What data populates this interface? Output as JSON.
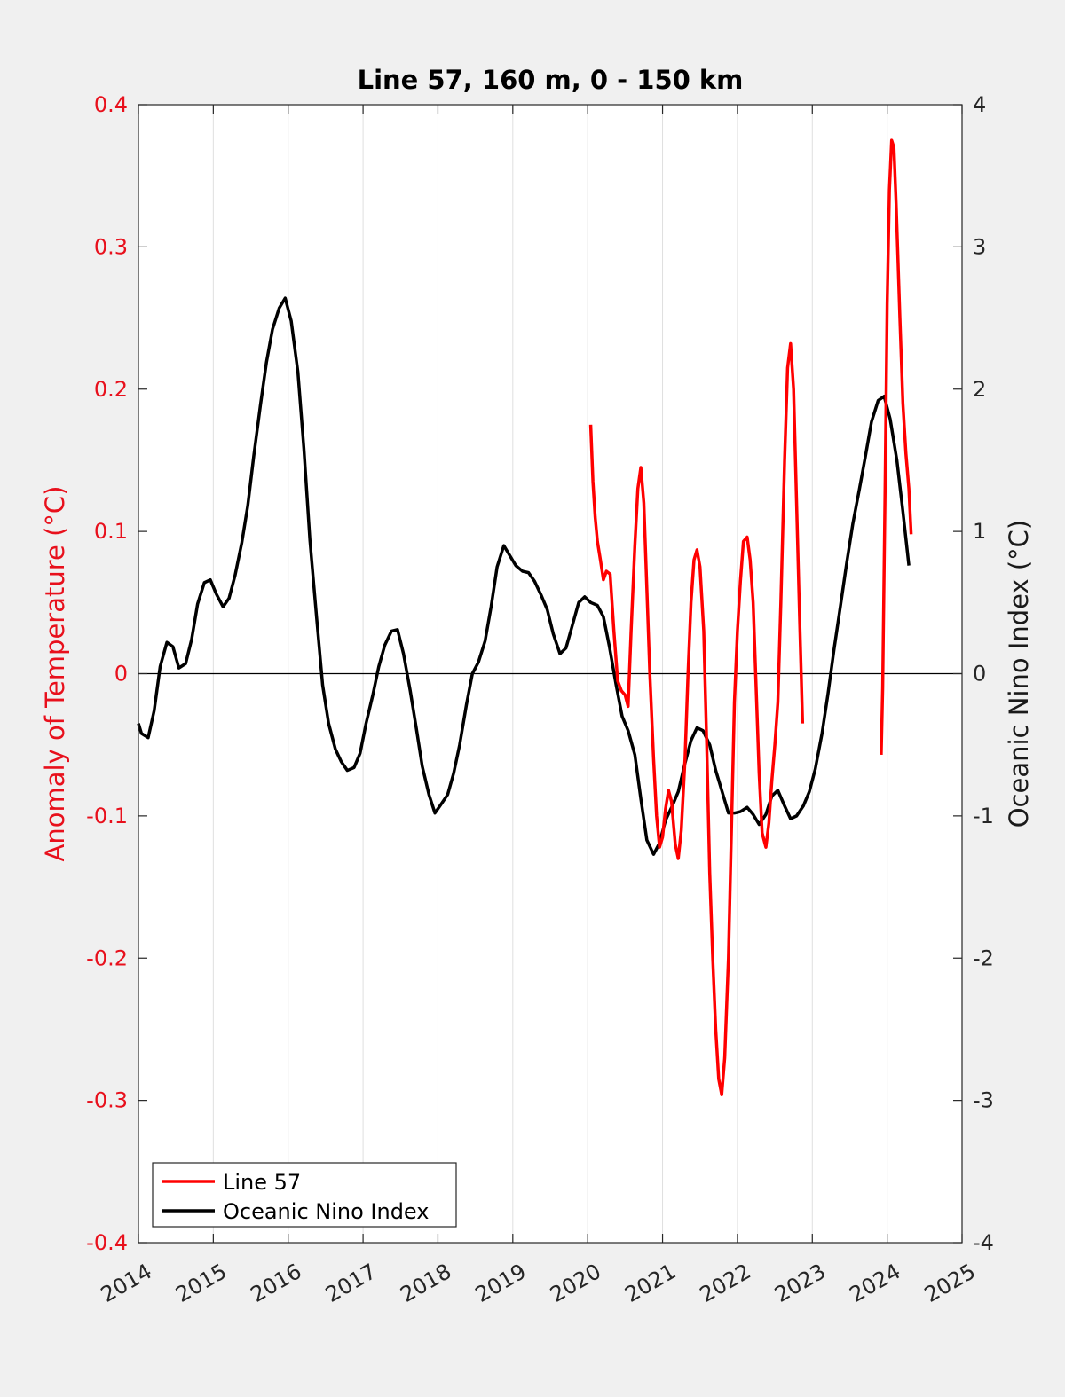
{
  "chart_data": {
    "type": "line",
    "title": "Line 57, 160 m, 0 - 150 km",
    "xlabel": "",
    "ylabel_left": "Anomaly of Temperature (°C)",
    "ylabel_right": "Oceanic Nino Index (°C)",
    "xlim": [
      2014,
      2025
    ],
    "ylim_left": [
      -0.4,
      0.4
    ],
    "ylim_right": [
      -4,
      4
    ],
    "x_ticks": [
      2014,
      2015,
      2016,
      2017,
      2018,
      2019,
      2020,
      2021,
      2022,
      2023,
      2024,
      2025
    ],
    "x_tick_labels": [
      "2014",
      "2015",
      "2016",
      "2017",
      "2018",
      "2019",
      "2020",
      "2021",
      "2022",
      "2023",
      "2024",
      "2025"
    ],
    "y_left_ticks": [
      0.4,
      0.3,
      0.2,
      0.1,
      0,
      -0.1,
      -0.2,
      -0.3,
      -0.4
    ],
    "y_left_tick_labels": [
      "0.4",
      "0.3",
      "0.2",
      "0.1",
      "0",
      "-0.1",
      "-0.2",
      "-0.3",
      "-0.4"
    ],
    "y_right_ticks": [
      4,
      3,
      2,
      1,
      0,
      -1,
      -2,
      -3,
      -4
    ],
    "y_right_tick_labels": [
      "4",
      "3",
      "2",
      "1",
      "0",
      "-1",
      "-2",
      "-3",
      "-4"
    ],
    "grid": "vertical",
    "zero_line": true,
    "legend_position": "bottom-left",
    "colors": {
      "left_axis": "#e8101c",
      "line57": "#ff0000",
      "oni": "#000000",
      "plot_bg": "#ffffff",
      "figure_bg": "#f0f0f0"
    },
    "series": [
      {
        "name": "Line 57",
        "axis": "left",
        "segments": [
          [
            [
              2020.04,
              0.175
            ],
            [
              2020.07,
              0.135
            ],
            [
              2020.1,
              0.11
            ],
            [
              2020.13,
              0.093
            ],
            [
              2020.17,
              0.08
            ],
            [
              2020.21,
              0.066
            ],
            [
              2020.25,
              0.072
            ],
            [
              2020.3,
              0.07
            ],
            [
              2020.35,
              0.03
            ],
            [
              2020.4,
              -0.005
            ],
            [
              2020.45,
              -0.012
            ],
            [
              2020.5,
              -0.015
            ],
            [
              2020.54,
              -0.023
            ],
            [
              2020.58,
              0.03
            ],
            [
              2020.63,
              0.09
            ],
            [
              2020.67,
              0.13
            ],
            [
              2020.71,
              0.145
            ],
            [
              2020.75,
              0.12
            ],
            [
              2020.79,
              0.06
            ],
            [
              2020.83,
              0.0
            ],
            [
              2020.88,
              -0.06
            ],
            [
              2020.92,
              -0.1
            ],
            [
              2020.96,
              -0.122
            ],
            [
              2021.0,
              -0.115
            ],
            [
              2021.04,
              -0.095
            ],
            [
              2021.08,
              -0.082
            ],
            [
              2021.12,
              -0.09
            ],
            [
              2021.17,
              -0.12
            ],
            [
              2021.21,
              -0.13
            ],
            [
              2021.25,
              -0.11
            ],
            [
              2021.3,
              -0.06
            ],
            [
              2021.34,
              0.0
            ],
            [
              2021.38,
              0.05
            ],
            [
              2021.42,
              0.08
            ],
            [
              2021.46,
              0.087
            ],
            [
              2021.5,
              0.075
            ],
            [
              2021.55,
              0.03
            ],
            [
              2021.59,
              -0.05
            ],
            [
              2021.63,
              -0.14
            ],
            [
              2021.67,
              -0.2
            ],
            [
              2021.71,
              -0.25
            ],
            [
              2021.75,
              -0.285
            ],
            [
              2021.79,
              -0.296
            ],
            [
              2021.83,
              -0.27
            ],
            [
              2021.88,
              -0.2
            ],
            [
              2021.92,
              -0.11
            ],
            [
              2021.96,
              -0.02
            ],
            [
              2022.0,
              0.03
            ],
            [
              2022.04,
              0.065
            ],
            [
              2022.08,
              0.093
            ],
            [
              2022.13,
              0.096
            ],
            [
              2022.17,
              0.08
            ],
            [
              2022.21,
              0.05
            ],
            [
              2022.25,
              -0.01
            ],
            [
              2022.29,
              -0.07
            ],
            [
              2022.33,
              -0.112
            ],
            [
              2022.38,
              -0.122
            ],
            [
              2022.42,
              -0.105
            ],
            [
              2022.46,
              -0.075
            ],
            [
              2022.5,
              -0.05
            ],
            [
              2022.54,
              -0.02
            ],
            [
              2022.58,
              0.05
            ],
            [
              2022.63,
              0.15
            ],
            [
              2022.67,
              0.215
            ],
            [
              2022.71,
              0.232
            ],
            [
              2022.75,
              0.2
            ],
            [
              2022.79,
              0.12
            ],
            [
              2022.83,
              0.04
            ],
            [
              2022.87,
              -0.035
            ]
          ],
          [
            [
              2023.92,
              -0.057
            ],
            [
              2023.94,
              -0.01
            ],
            [
              2023.97,
              0.12
            ],
            [
              2024.0,
              0.26
            ],
            [
              2024.03,
              0.34
            ],
            [
              2024.06,
              0.375
            ],
            [
              2024.09,
              0.37
            ],
            [
              2024.12,
              0.33
            ],
            [
              2024.17,
              0.25
            ],
            [
              2024.21,
              0.19
            ],
            [
              2024.25,
              0.155
            ],
            [
              2024.29,
              0.13
            ],
            [
              2024.32,
              0.098
            ]
          ]
        ]
      },
      {
        "name": "Oceanic Nino Index",
        "axis": "right",
        "segments": [
          [
            [
              2014.0,
              -0.35
            ],
            [
              2014.04,
              -0.42
            ],
            [
              2014.13,
              -0.45
            ],
            [
              2014.21,
              -0.26
            ],
            [
              2014.29,
              0.05
            ],
            [
              2014.38,
              0.22
            ],
            [
              2014.46,
              0.19
            ],
            [
              2014.54,
              0.04
            ],
            [
              2014.63,
              0.07
            ],
            [
              2014.71,
              0.24
            ],
            [
              2014.79,
              0.49
            ],
            [
              2014.88,
              0.64
            ],
            [
              2014.96,
              0.66
            ],
            [
              2015.04,
              0.56
            ],
            [
              2015.13,
              0.47
            ],
            [
              2015.21,
              0.53
            ],
            [
              2015.29,
              0.69
            ],
            [
              2015.38,
              0.92
            ],
            [
              2015.46,
              1.18
            ],
            [
              2015.54,
              1.53
            ],
            [
              2015.63,
              1.89
            ],
            [
              2015.71,
              2.19
            ],
            [
              2015.79,
              2.42
            ],
            [
              2015.88,
              2.57
            ],
            [
              2015.96,
              2.64
            ],
            [
              2016.04,
              2.48
            ],
            [
              2016.13,
              2.12
            ],
            [
              2016.21,
              1.58
            ],
            [
              2016.29,
              0.94
            ],
            [
              2016.38,
              0.39
            ],
            [
              2016.46,
              -0.08
            ],
            [
              2016.54,
              -0.35
            ],
            [
              2016.63,
              -0.53
            ],
            [
              2016.71,
              -0.62
            ],
            [
              2016.79,
              -0.68
            ],
            [
              2016.88,
              -0.66
            ],
            [
              2016.96,
              -0.56
            ],
            [
              2017.04,
              -0.35
            ],
            [
              2017.13,
              -0.15
            ],
            [
              2017.21,
              0.05
            ],
            [
              2017.29,
              0.2
            ],
            [
              2017.38,
              0.3
            ],
            [
              2017.46,
              0.31
            ],
            [
              2017.54,
              0.14
            ],
            [
              2017.63,
              -0.12
            ],
            [
              2017.71,
              -0.38
            ],
            [
              2017.79,
              -0.65
            ],
            [
              2017.88,
              -0.85
            ],
            [
              2017.96,
              -0.98
            ],
            [
              2018.04,
              -0.92
            ],
            [
              2018.13,
              -0.85
            ],
            [
              2018.21,
              -0.7
            ],
            [
              2018.29,
              -0.5
            ],
            [
              2018.38,
              -0.22
            ],
            [
              2018.46,
              0.0
            ],
            [
              2018.54,
              0.08
            ],
            [
              2018.63,
              0.23
            ],
            [
              2018.71,
              0.47
            ],
            [
              2018.79,
              0.75
            ],
            [
              2018.88,
              0.9
            ],
            [
              2018.96,
              0.83
            ],
            [
              2019.04,
              0.76
            ],
            [
              2019.13,
              0.72
            ],
            [
              2019.21,
              0.71
            ],
            [
              2019.29,
              0.65
            ],
            [
              2019.38,
              0.55
            ],
            [
              2019.46,
              0.45
            ],
            [
              2019.54,
              0.28
            ],
            [
              2019.63,
              0.14
            ],
            [
              2019.71,
              0.18
            ],
            [
              2019.79,
              0.33
            ],
            [
              2019.88,
              0.5
            ],
            [
              2019.96,
              0.54
            ],
            [
              2020.04,
              0.5
            ],
            [
              2020.13,
              0.48
            ],
            [
              2020.21,
              0.4
            ],
            [
              2020.29,
              0.19
            ],
            [
              2020.38,
              -0.08
            ],
            [
              2020.46,
              -0.3
            ],
            [
              2020.54,
              -0.4
            ],
            [
              2020.63,
              -0.57
            ],
            [
              2020.71,
              -0.88
            ],
            [
              2020.79,
              -1.17
            ],
            [
              2020.88,
              -1.27
            ],
            [
              2020.96,
              -1.19
            ],
            [
              2021.04,
              -1.03
            ],
            [
              2021.13,
              -0.93
            ],
            [
              2021.21,
              -0.83
            ],
            [
              2021.29,
              -0.65
            ],
            [
              2021.38,
              -0.47
            ],
            [
              2021.46,
              -0.38
            ],
            [
              2021.54,
              -0.4
            ],
            [
              2021.63,
              -0.5
            ],
            [
              2021.71,
              -0.68
            ],
            [
              2021.79,
              -0.82
            ],
            [
              2021.88,
              -0.98
            ],
            [
              2021.96,
              -0.98
            ],
            [
              2022.04,
              -0.97
            ],
            [
              2022.13,
              -0.94
            ],
            [
              2022.21,
              -0.99
            ],
            [
              2022.29,
              -1.06
            ],
            [
              2022.38,
              -0.99
            ],
            [
              2022.46,
              -0.86
            ],
            [
              2022.54,
              -0.82
            ],
            [
              2022.63,
              -0.93
            ],
            [
              2022.71,
              -1.02
            ],
            [
              2022.79,
              -1.0
            ],
            [
              2022.88,
              -0.93
            ],
            [
              2022.96,
              -0.83
            ],
            [
              2023.04,
              -0.67
            ],
            [
              2023.13,
              -0.42
            ],
            [
              2023.21,
              -0.14
            ],
            [
              2023.29,
              0.17
            ],
            [
              2023.38,
              0.49
            ],
            [
              2023.46,
              0.78
            ],
            [
              2023.54,
              1.05
            ],
            [
              2023.63,
              1.3
            ],
            [
              2023.71,
              1.53
            ],
            [
              2023.79,
              1.77
            ],
            [
              2023.88,
              1.92
            ],
            [
              2023.96,
              1.95
            ],
            [
              2024.04,
              1.79
            ],
            [
              2024.13,
              1.5
            ],
            [
              2024.21,
              1.14
            ],
            [
              2024.29,
              0.76
            ]
          ]
        ]
      }
    ]
  }
}
